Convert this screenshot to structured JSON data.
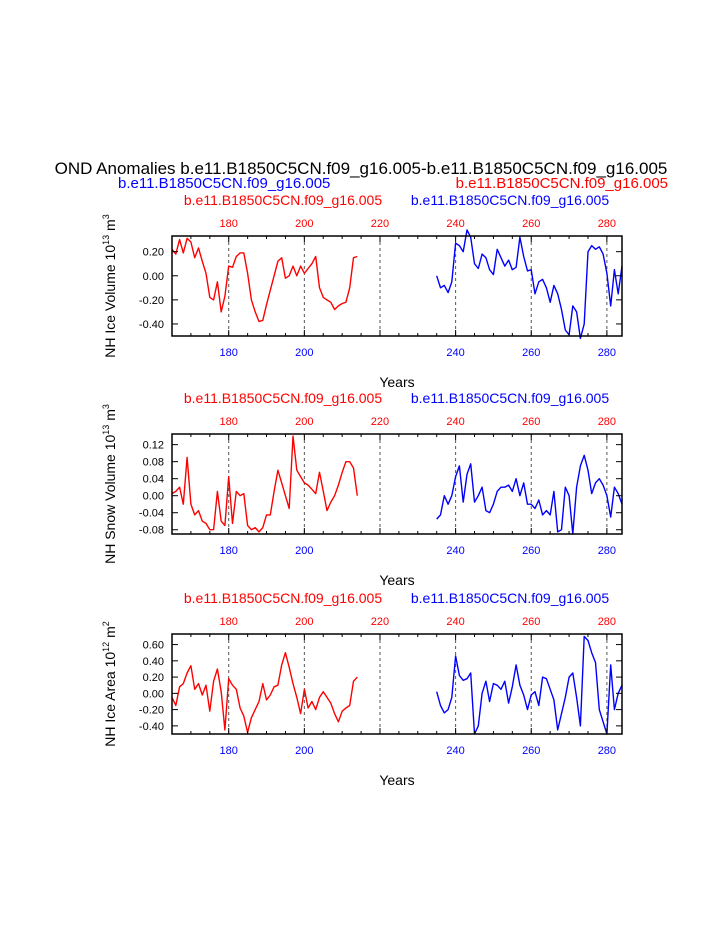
{
  "title": "OND Anomalies b.e11.B1850C5CN.f09_g16.005-b.e11.B1850C5CN.f09_g16.005",
  "subtitle_left": "b.e11.B1850C5CN.f09_g16.005",
  "subtitle_right": "b.e11.B1850C5CN.f09_g16.005",
  "colors": {
    "case1": "#ff0000",
    "case2": "#0000ff",
    "axis": "#000000",
    "grid": "#555555"
  },
  "chart_data": [
    {
      "type": "line",
      "ylabel_prefix": "NH Ice Volume 10",
      "ylabel_exp": "13",
      "ylabel_unit": " m",
      "ylabel_unit_exp": "3",
      "xlabel": "Years",
      "xlim": [
        165,
        284
      ],
      "ylim": [
        -0.5,
        0.33
      ],
      "xticks": [
        180,
        200,
        220,
        240,
        260,
        280
      ],
      "top_ticks": [
        180,
        200,
        220,
        240,
        260,
        280
      ],
      "bottom_ticks": [
        180,
        200,
        240,
        260,
        280
      ],
      "ytick_labels": [
        "0.20",
        "0.00",
        "-0.20",
        "-0.40"
      ],
      "yticks": [
        0.2,
        0.0,
        -0.2,
        -0.4
      ],
      "top_case_label_1": "b.e11.B1850C5CN.f09_g16.005",
      "top_case_label_2": "b.e11.B1850C5CN.f09_g16.005",
      "series": [
        {
          "name": "b.e11.B1850C5CN.f09_g16.005",
          "color": "#ff0000",
          "x": [
            165,
            166,
            167,
            168,
            169,
            170,
            171,
            172,
            173,
            174,
            175,
            176,
            177,
            178,
            179,
            180,
            181,
            182,
            183,
            184,
            185,
            186,
            187,
            188,
            189,
            190,
            191,
            192,
            193,
            194,
            195,
            196,
            197,
            198,
            199,
            200,
            201,
            202,
            203,
            204,
            205,
            206,
            207,
            208,
            209,
            210,
            211,
            212,
            213,
            214
          ],
          "values": [
            0.22,
            0.18,
            0.3,
            0.19,
            0.31,
            0.28,
            0.15,
            0.23,
            0.12,
            0.02,
            -0.18,
            -0.2,
            -0.05,
            -0.3,
            -0.17,
            0.08,
            0.07,
            0.16,
            0.19,
            0.19,
            0.02,
            -0.2,
            -0.3,
            -0.38,
            -0.37,
            -0.24,
            -0.12,
            0.0,
            0.12,
            0.15,
            -0.02,
            0.0,
            0.08,
            0.0,
            0.08,
            0.02,
            0.06,
            0.1,
            0.16,
            -0.1,
            -0.18,
            -0.2,
            -0.22,
            -0.28,
            -0.25,
            -0.23,
            -0.22,
            -0.1,
            0.15,
            0.16
          ]
        },
        {
          "name": "b.e11.B1850C5CN.f09_g16.005",
          "color": "#0000ff",
          "x": [
            235,
            236,
            237,
            238,
            239,
            240,
            241,
            242,
            243,
            244,
            245,
            246,
            247,
            248,
            249,
            250,
            251,
            252,
            253,
            254,
            255,
            256,
            257,
            258,
            259,
            260,
            261,
            262,
            263,
            264,
            265,
            266,
            267,
            268,
            269,
            270,
            271,
            272,
            273,
            274,
            275,
            276,
            277,
            278,
            279,
            280,
            281,
            282,
            283,
            284
          ],
          "values": [
            0.0,
            -0.1,
            -0.08,
            -0.14,
            -0.05,
            0.27,
            0.25,
            0.2,
            0.38,
            0.32,
            0.1,
            0.06,
            0.18,
            0.15,
            0.05,
            0.01,
            0.22,
            0.15,
            0.08,
            0.13,
            0.05,
            0.07,
            0.32,
            0.16,
            0.04,
            0.05,
            -0.15,
            -0.05,
            -0.03,
            -0.1,
            -0.22,
            -0.08,
            -0.15,
            -0.28,
            -0.45,
            -0.49,
            -0.25,
            -0.3,
            -0.52,
            -0.4,
            0.2,
            0.25,
            0.22,
            0.24,
            0.18,
            0.02,
            -0.25,
            0.05,
            -0.15,
            0.08
          ]
        }
      ]
    },
    {
      "type": "line",
      "ylabel_prefix": "NH Snow Volume 10",
      "ylabel_exp": "13",
      "ylabel_unit": " m",
      "ylabel_unit_exp": "3",
      "xlabel": "Years",
      "xlim": [
        165,
        284
      ],
      "ylim": [
        -0.09,
        0.145
      ],
      "xticks": [
        180,
        200,
        220,
        240,
        260,
        280
      ],
      "top_ticks": [
        180,
        200,
        220,
        240,
        260,
        280
      ],
      "bottom_ticks": [
        180,
        200,
        240,
        260,
        280
      ],
      "ytick_labels": [
        "0.12",
        "0.08",
        "0.04",
        "0.00",
        "-0.04",
        "-0.08"
      ],
      "yticks": [
        0.12,
        0.08,
        0.04,
        0.0,
        -0.04,
        -0.08
      ],
      "top_case_label_1": "b.e11.B1850C5CN.f09_g16.005",
      "top_case_label_2": "b.e11.B1850C5CN.f09_g16.005",
      "series": [
        {
          "name": "b.e11.B1850C5CN.f09_g16.005",
          "color": "#ff0000",
          "x": [
            165,
            166,
            167,
            168,
            169,
            170,
            171,
            172,
            173,
            174,
            175,
            176,
            177,
            178,
            179,
            180,
            181,
            182,
            183,
            184,
            185,
            186,
            187,
            188,
            189,
            190,
            191,
            192,
            193,
            194,
            195,
            196,
            197,
            198,
            199,
            200,
            201,
            202,
            203,
            204,
            205,
            206,
            207,
            208,
            209,
            210,
            211,
            212,
            213,
            214
          ],
          "values": [
            0.005,
            0.01,
            0.02,
            -0.02,
            0.09,
            -0.02,
            -0.045,
            -0.035,
            -0.06,
            -0.065,
            -0.08,
            -0.08,
            0.01,
            -0.06,
            -0.07,
            0.045,
            -0.065,
            0.01,
            0.0,
            0.005,
            -0.07,
            -0.08,
            -0.075,
            -0.085,
            -0.075,
            -0.045,
            -0.045,
            0.01,
            0.06,
            0.03,
            0.0,
            -0.03,
            0.14,
            0.06,
            0.045,
            0.03,
            0.025,
            0.015,
            0.005,
            0.055,
            0.01,
            -0.035,
            -0.015,
            0.0,
            0.025,
            0.055,
            0.08,
            0.08,
            0.065,
            0.0
          ]
        },
        {
          "name": "b.e11.B1850C5CN.f09_g16.005",
          "color": "#0000ff",
          "x": [
            235,
            236,
            237,
            238,
            239,
            240,
            241,
            242,
            243,
            244,
            245,
            246,
            247,
            248,
            249,
            250,
            251,
            252,
            253,
            254,
            255,
            256,
            257,
            258,
            259,
            260,
            261,
            262,
            263,
            264,
            265,
            266,
            267,
            268,
            269,
            270,
            271,
            272,
            273,
            274,
            275,
            276,
            277,
            278,
            279,
            280,
            281,
            282,
            283,
            284
          ],
          "values": [
            -0.055,
            -0.045,
            0.0,
            -0.02,
            0.0,
            0.045,
            0.07,
            -0.015,
            0.05,
            0.075,
            -0.015,
            0.0,
            0.02,
            -0.035,
            -0.04,
            -0.02,
            0.01,
            0.02,
            0.02,
            0.025,
            0.01,
            0.04,
            0.0,
            0.03,
            -0.02,
            -0.02,
            -0.03,
            -0.01,
            -0.045,
            -0.035,
            -0.045,
            0.01,
            -0.085,
            -0.08,
            0.02,
            0.0,
            -0.09,
            0.02,
            0.07,
            0.095,
            0.06,
            0.005,
            0.03,
            0.04,
            0.025,
            0.0,
            -0.05,
            0.02,
            0.005,
            -0.02
          ]
        }
      ]
    },
    {
      "type": "line",
      "ylabel_prefix": "NH Ice Area 10",
      "ylabel_exp": "12",
      "ylabel_unit": " m",
      "ylabel_unit_exp": "2",
      "xlabel": "Years",
      "xlim": [
        165,
        284
      ],
      "ylim": [
        -0.5,
        0.73
      ],
      "xticks": [
        180,
        200,
        220,
        240,
        260,
        280
      ],
      "top_ticks": [
        180,
        200,
        220,
        240,
        260,
        280
      ],
      "bottom_ticks": [
        180,
        200,
        240,
        260,
        280
      ],
      "ytick_labels": [
        "0.60",
        "0.40",
        "0.20",
        "0.00",
        "-0.20",
        "-0.40"
      ],
      "yticks": [
        0.6,
        0.4,
        0.2,
        0.0,
        -0.2,
        -0.4
      ],
      "top_case_label_1": "b.e11.B1850C5CN.f09_g16.005",
      "top_case_label_2": "b.e11.B1850C5CN.f09_g16.005",
      "series": [
        {
          "name": "b.e11.B1850C5CN.f09_g16.005",
          "color": "#ff0000",
          "x": [
            165,
            166,
            167,
            168,
            169,
            170,
            171,
            172,
            173,
            174,
            175,
            176,
            177,
            178,
            179,
            180,
            181,
            182,
            183,
            184,
            185,
            186,
            187,
            188,
            189,
            190,
            191,
            192,
            193,
            194,
            195,
            196,
            197,
            198,
            199,
            200,
            201,
            202,
            203,
            204,
            205,
            206,
            207,
            208,
            209,
            210,
            211,
            212,
            213,
            214
          ],
          "values": [
            -0.05,
            -0.15,
            0.08,
            0.12,
            0.25,
            0.34,
            0.05,
            0.12,
            -0.02,
            0.1,
            -0.22,
            0.15,
            0.3,
            0.02,
            -0.45,
            0.18,
            0.1,
            0.05,
            -0.18,
            -0.28,
            -0.48,
            -0.3,
            -0.2,
            -0.1,
            0.12,
            -0.08,
            -0.02,
            0.08,
            0.1,
            0.35,
            0.5,
            0.32,
            0.12,
            -0.05,
            -0.25,
            0.05,
            -0.18,
            -0.1,
            -0.2,
            -0.05,
            0.02,
            -0.05,
            -0.12,
            -0.25,
            -0.35,
            -0.22,
            -0.18,
            -0.15,
            0.15,
            0.2
          ]
        },
        {
          "name": "b.e11.B1850C5CN.f09_g16.005",
          "color": "#0000ff",
          "x": [
            235,
            236,
            237,
            238,
            239,
            240,
            241,
            242,
            243,
            244,
            245,
            246,
            247,
            248,
            249,
            250,
            251,
            252,
            253,
            254,
            255,
            256,
            257,
            258,
            259,
            260,
            261,
            262,
            263,
            264,
            265,
            266,
            267,
            268,
            269,
            270,
            271,
            272,
            273,
            274,
            275,
            276,
            277,
            278,
            279,
            280,
            281,
            282,
            283,
            284
          ],
          "values": [
            0.02,
            -0.15,
            -0.24,
            -0.2,
            -0.05,
            0.46,
            0.22,
            0.16,
            0.18,
            0.25,
            -0.5,
            -0.4,
            0.0,
            0.15,
            -0.1,
            0.12,
            0.1,
            0.05,
            0.15,
            -0.12,
            0.08,
            0.35,
            0.1,
            -0.02,
            -0.2,
            -0.02,
            0.02,
            -0.15,
            0.2,
            0.18,
            0.05,
            -0.08,
            -0.45,
            -0.25,
            -0.05,
            0.2,
            0.25,
            -0.05,
            -0.4,
            0.7,
            0.65,
            0.5,
            0.38,
            -0.2,
            -0.35,
            -0.5,
            0.35,
            -0.2,
            0.0,
            0.1
          ]
        }
      ]
    }
  ]
}
